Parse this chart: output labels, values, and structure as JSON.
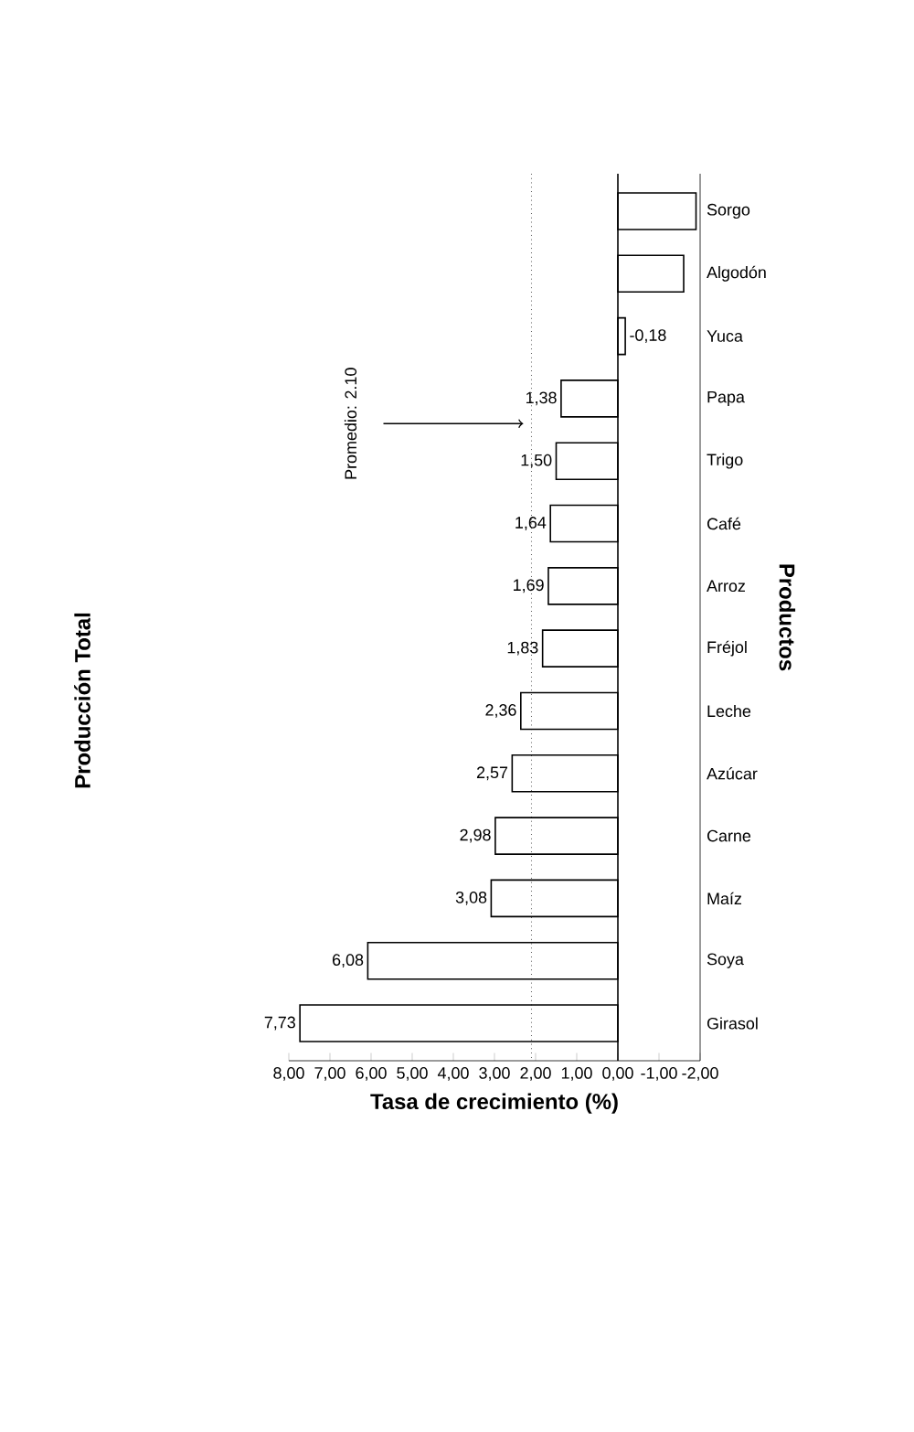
{
  "chart_data": {
    "type": "bar",
    "orientation": "horizontal",
    "title": "Producción Total",
    "xlabel": "Tasa de crecimiento (%)",
    "ylabel": "Productos",
    "categories": [
      "Sorgo",
      "Algodón",
      "Yuca",
      "Papa",
      "Trigo",
      "Café",
      "Arroz",
      "Fréjol",
      "Leche",
      "Azúcar",
      "Carne",
      "Maíz",
      "Soya",
      "Girasol"
    ],
    "values": [
      -1.9,
      -1.6,
      -0.18,
      1.38,
      1.5,
      1.64,
      1.69,
      1.83,
      2.36,
      2.57,
      2.98,
      3.08,
      6.08,
      7.73
    ],
    "value_labels": [
      null,
      null,
      "-0,18",
      "1,38",
      "1,50",
      "1,64",
      "1,69",
      "1,83",
      "2,36",
      "2,57",
      "2,98",
      "3,08",
      "6,08",
      "7,73"
    ],
    "color": "#ffffff",
    "xlim": [
      8,
      -2
    ],
    "xticks": [
      {
        "value": 8,
        "label": "8,00"
      },
      {
        "value": 7,
        "label": "7,00"
      },
      {
        "value": 6,
        "label": "6,00"
      },
      {
        "value": 5,
        "label": "5,00"
      },
      {
        "value": 4,
        "label": "4,00"
      },
      {
        "value": 3,
        "label": "3,00"
      },
      {
        "value": 2,
        "label": "2,00"
      },
      {
        "value": 1,
        "label": "1,00"
      },
      {
        "value": 0,
        "label": "0,00"
      },
      {
        "value": -1,
        "label": "-1,00"
      },
      {
        "value": -2,
        "label": "-2,00"
      }
    ],
    "ref_lines": [
      {
        "axis": "x",
        "value": 2.1,
        "label": "Promedio: 2.10",
        "line_style": "dotted"
      }
    ]
  }
}
